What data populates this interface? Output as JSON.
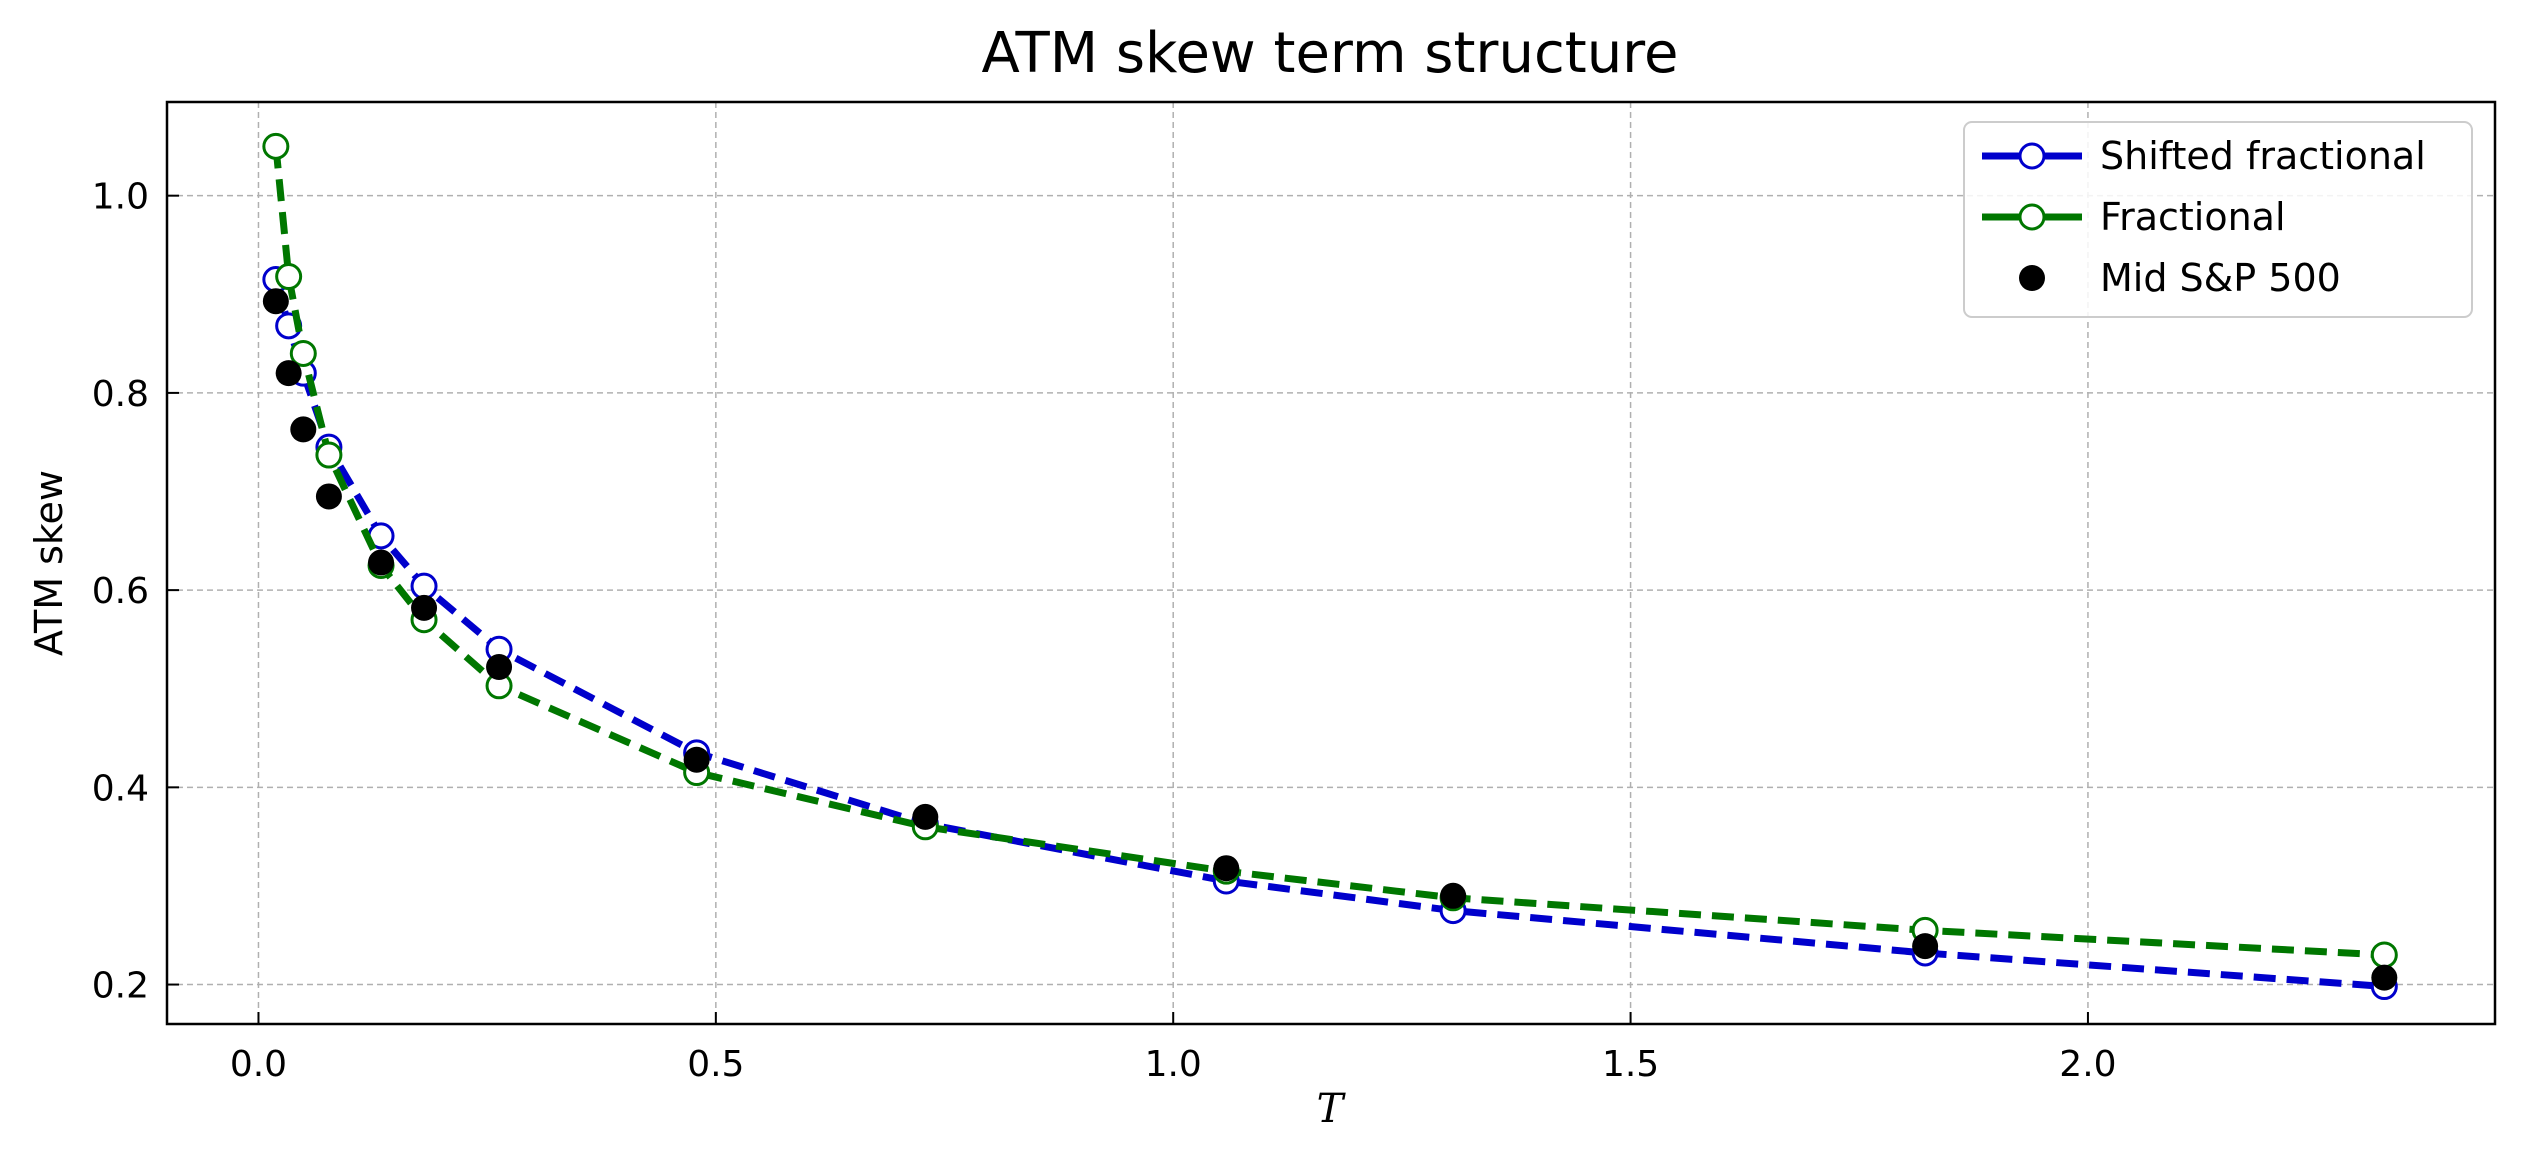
{
  "chart_data": {
    "type": "line",
    "title": "ATM skew term structure",
    "xlabel": "T",
    "ylabel": "ATM skew",
    "xlim": [
      -0.1,
      2.445
    ],
    "ylim": [
      0.16,
      1.095
    ],
    "xticks": [
      0.0,
      0.5,
      1.0,
      1.5,
      2.0
    ],
    "yticks": [
      0.2,
      0.4,
      0.6,
      0.8,
      1.0
    ],
    "xtick_labels": [
      "0.0",
      "0.5",
      "1.0",
      "1.5",
      "2.0"
    ],
    "ytick_labels": [
      "0.2",
      "0.4",
      "0.6",
      "0.8",
      "1.0"
    ],
    "grid": true,
    "legend_position": "top-right",
    "series": [
      {
        "name": "Shifted fractional",
        "style": "dashed-line-open-circles",
        "color": "#0000cc",
        "x": [
          0.019,
          0.033,
          0.049,
          0.077,
          0.134,
          0.181,
          0.263,
          0.479,
          0.729,
          1.058,
          1.306,
          1.822,
          2.324
        ],
        "y": [
          0.915,
          0.868,
          0.82,
          0.745,
          0.655,
          0.604,
          0.54,
          0.435,
          0.363,
          0.305,
          0.275,
          0.232,
          0.198
        ]
      },
      {
        "name": "Fractional",
        "style": "dashed-line-open-circles",
        "color": "#007700",
        "x": [
          0.019,
          0.033,
          0.049,
          0.077,
          0.134,
          0.181,
          0.263,
          0.479,
          0.729,
          1.058,
          1.306,
          1.822,
          2.324
        ],
        "y": [
          1.05,
          0.918,
          0.84,
          0.737,
          0.625,
          0.57,
          0.503,
          0.415,
          0.36,
          0.315,
          0.288,
          0.255,
          0.23
        ]
      },
      {
        "name": "Mid S&P 500",
        "style": "markers-filled-circles",
        "color": "#000000",
        "x": [
          0.019,
          0.033,
          0.049,
          0.077,
          0.134,
          0.181,
          0.263,
          0.479,
          0.729,
          1.058,
          1.306,
          1.822,
          2.324
        ],
        "y": [
          0.893,
          0.82,
          0.763,
          0.695,
          0.628,
          0.582,
          0.522,
          0.428,
          0.37,
          0.318,
          0.29,
          0.239,
          0.207
        ]
      }
    ]
  }
}
